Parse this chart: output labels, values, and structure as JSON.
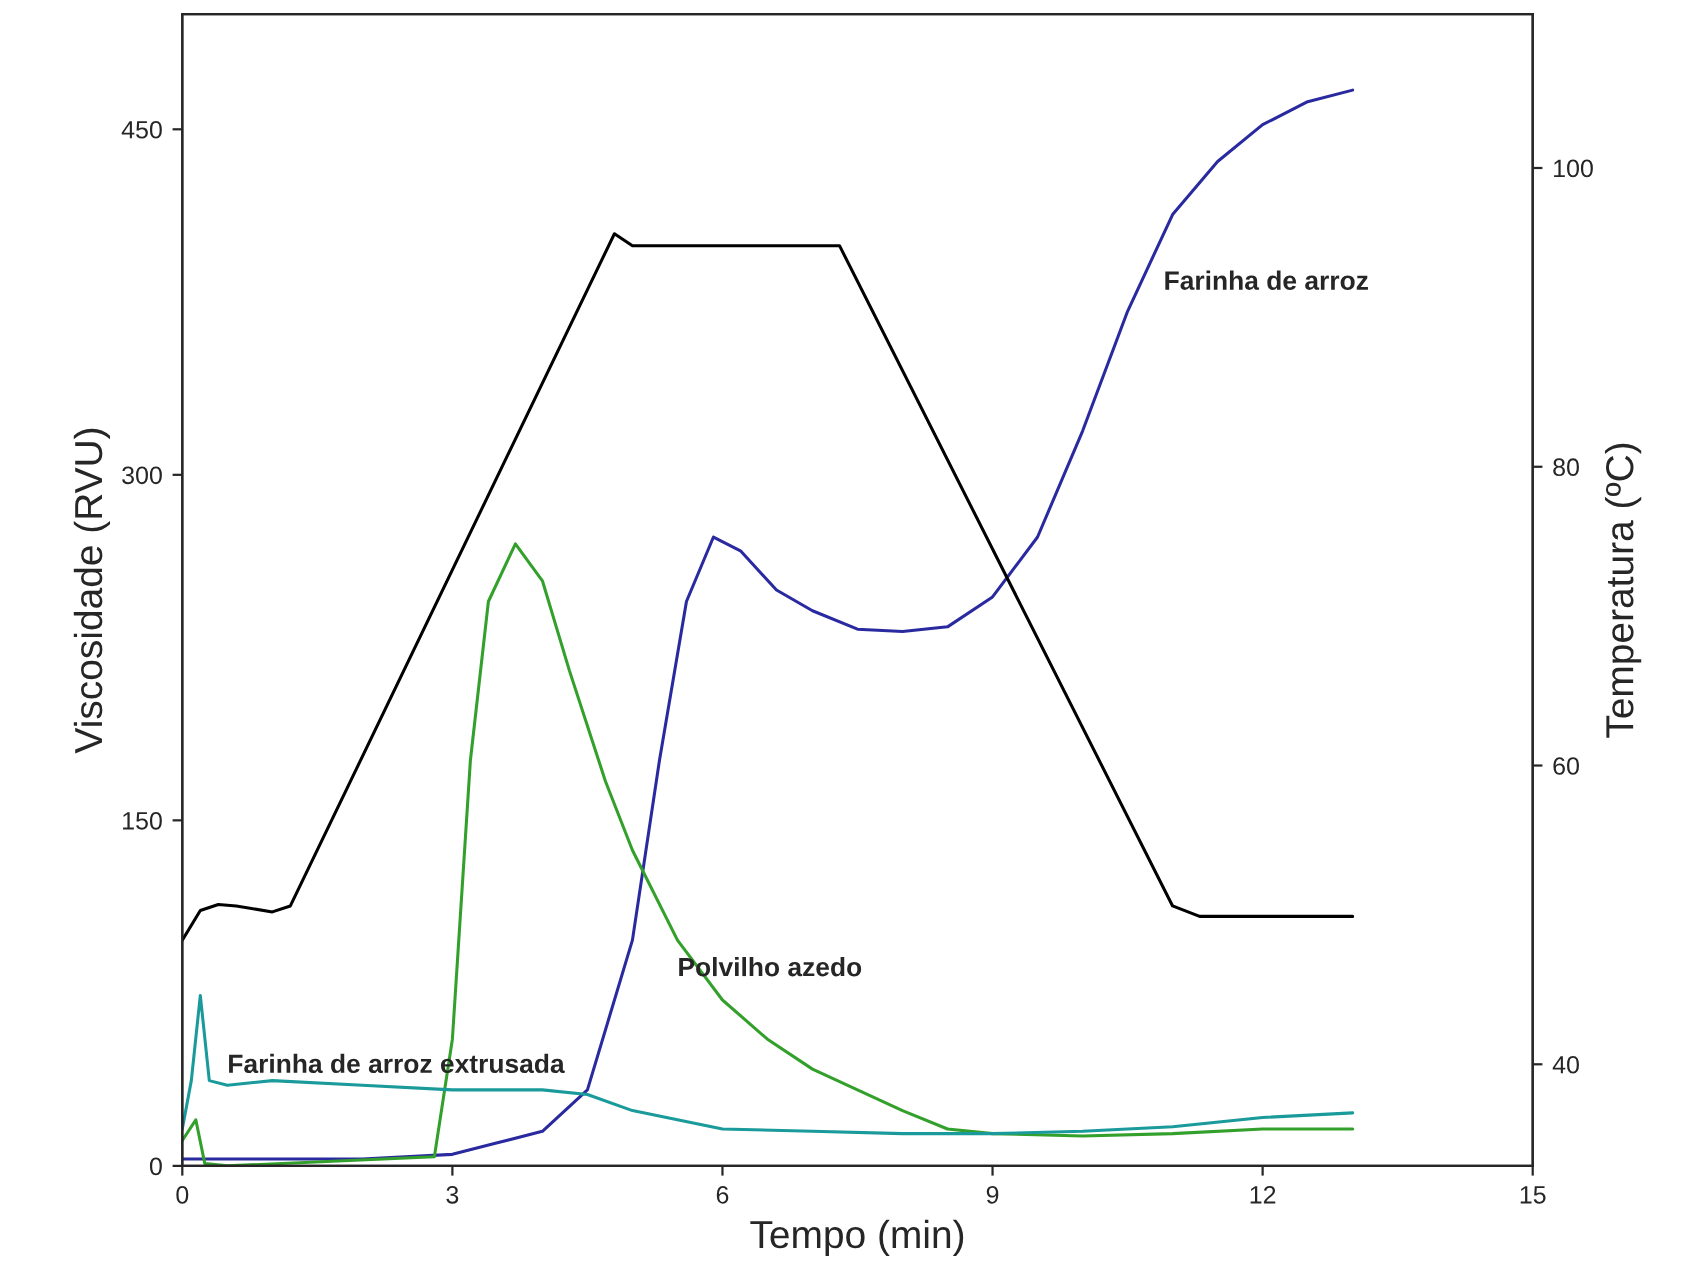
{
  "chart_data": {
    "type": "line",
    "xlabel": "Tempo (min)",
    "ylabel": "Viscosidade (RVU)",
    "y2label": "Temperatura (ºC)",
    "xlim": [
      0,
      15
    ],
    "xticks": [
      0,
      3,
      6,
      9,
      12,
      15
    ],
    "ylim": [
      0,
      500
    ],
    "yticks": [
      0,
      150,
      300,
      450
    ],
    "y2lim": [
      33.2,
      110.3
    ],
    "y2ticks": [
      40,
      60,
      80,
      100
    ],
    "grid": false,
    "legend": false,
    "marker": "none",
    "line_style": "solid",
    "series": [
      {
        "color": "#000000",
        "axis": "y2",
        "x": [
          0,
          0.2,
          0.4,
          0.6,
          1.0,
          1.2,
          4.8,
          5.0,
          7.3,
          11.0,
          11.3,
          13.0
        ],
        "values": [
          48.3,
          50.3,
          50.7,
          50.6,
          50.2,
          50.6,
          95.6,
          94.8,
          94.8,
          50.6,
          49.9,
          49.9
        ]
      },
      {
        "name": "Farinha de arroz",
        "color": "#2a2aa0",
        "x": [
          0,
          2,
          3,
          3.5,
          4,
          4.5,
          5,
          5.3,
          5.6,
          5.9,
          6.2,
          6.6,
          7,
          7.5,
          8,
          8.5,
          9,
          9.5,
          10,
          10.5,
          11,
          11.5,
          12,
          12.5,
          13
        ],
        "values": [
          3,
          3,
          5,
          10,
          15,
          33,
          98,
          176,
          245,
          273,
          267,
          250,
          241,
          233,
          232,
          234,
          247,
          273,
          319,
          371,
          413,
          436,
          452,
          462,
          467
        ]
      },
      {
        "name": "Polvilho azedo",
        "color": "#33a02c",
        "x": [
          0,
          0.15,
          0.25,
          0.5,
          2.8,
          3.0,
          3.2,
          3.4,
          3.7,
          4.0,
          4.3,
          4.7,
          5.0,
          5.5,
          6,
          6.5,
          7,
          7.5,
          8,
          8.5,
          9,
          10,
          11,
          12,
          13
        ],
        "values": [
          11,
          20,
          1,
          0,
          4,
          55,
          176,
          245,
          270,
          254,
          215,
          167,
          137,
          98,
          72,
          55,
          42,
          33,
          24,
          16,
          14,
          13,
          14,
          16,
          16
        ]
      },
      {
        "name": "Farinha de arroz extrusada",
        "color": "#1a9a9a",
        "x": [
          0,
          0.1,
          0.2,
          0.3,
          0.5,
          1,
          2,
          3,
          4,
          4.5,
          5,
          5.5,
          6,
          7,
          8,
          9,
          10,
          11,
          12,
          13
        ],
        "values": [
          16,
          37,
          74,
          37,
          35,
          37,
          35,
          33,
          33,
          31,
          24,
          20,
          16,
          15,
          14,
          14,
          15,
          17,
          21,
          23
        ]
      }
    ]
  }
}
